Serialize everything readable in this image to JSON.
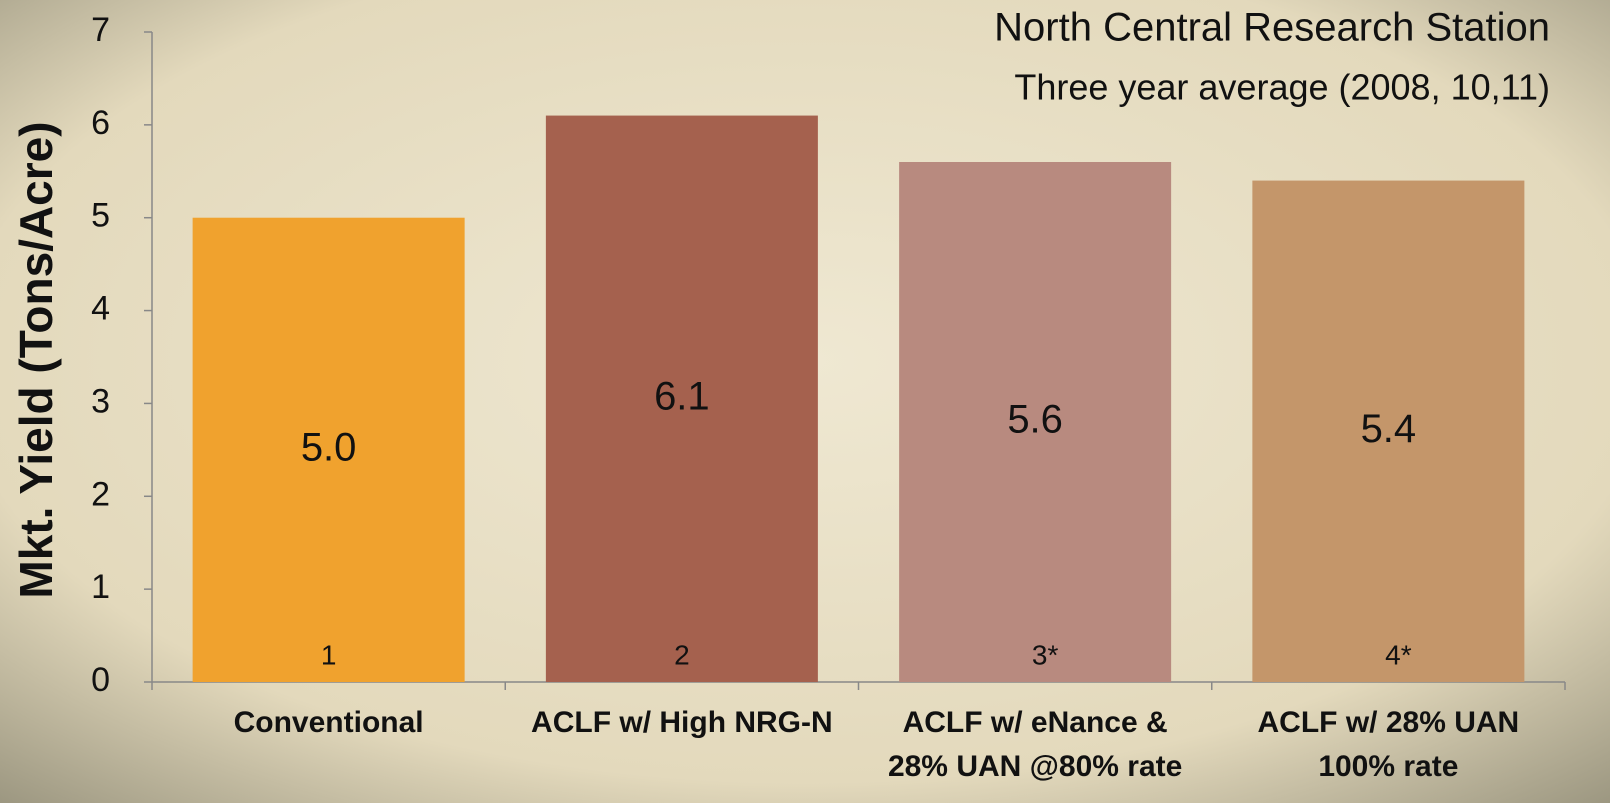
{
  "chart_data": {
    "type": "bar",
    "title": "North Central Research Station",
    "subtitle": "Three year average (2008, 10,11)",
    "y_label": "Mkt. Yield (Tons/Acre)",
    "categories": [
      [
        "Conventional"
      ],
      [
        "ACLF w/ High NRG-N"
      ],
      [
        "ACLF w/ eNance &",
        "28% UAN @80% rate"
      ],
      [
        "ACLF w/ 28% UAN",
        "100% rate"
      ]
    ],
    "values": [
      5.0,
      6.1,
      5.6,
      5.4
    ],
    "value_labels": [
      "5.0",
      "6.1",
      "5.6",
      "5.4"
    ],
    "bar_labels": [
      "1",
      "2",
      "3*",
      "4*"
    ],
    "colors": [
      "#f0a22e",
      "#a5614e",
      "#b88a7f",
      "#c4966a"
    ],
    "ylim": [
      0,
      7
    ],
    "yticks": [
      0,
      1,
      2,
      3,
      4,
      5,
      6,
      7
    ]
  }
}
